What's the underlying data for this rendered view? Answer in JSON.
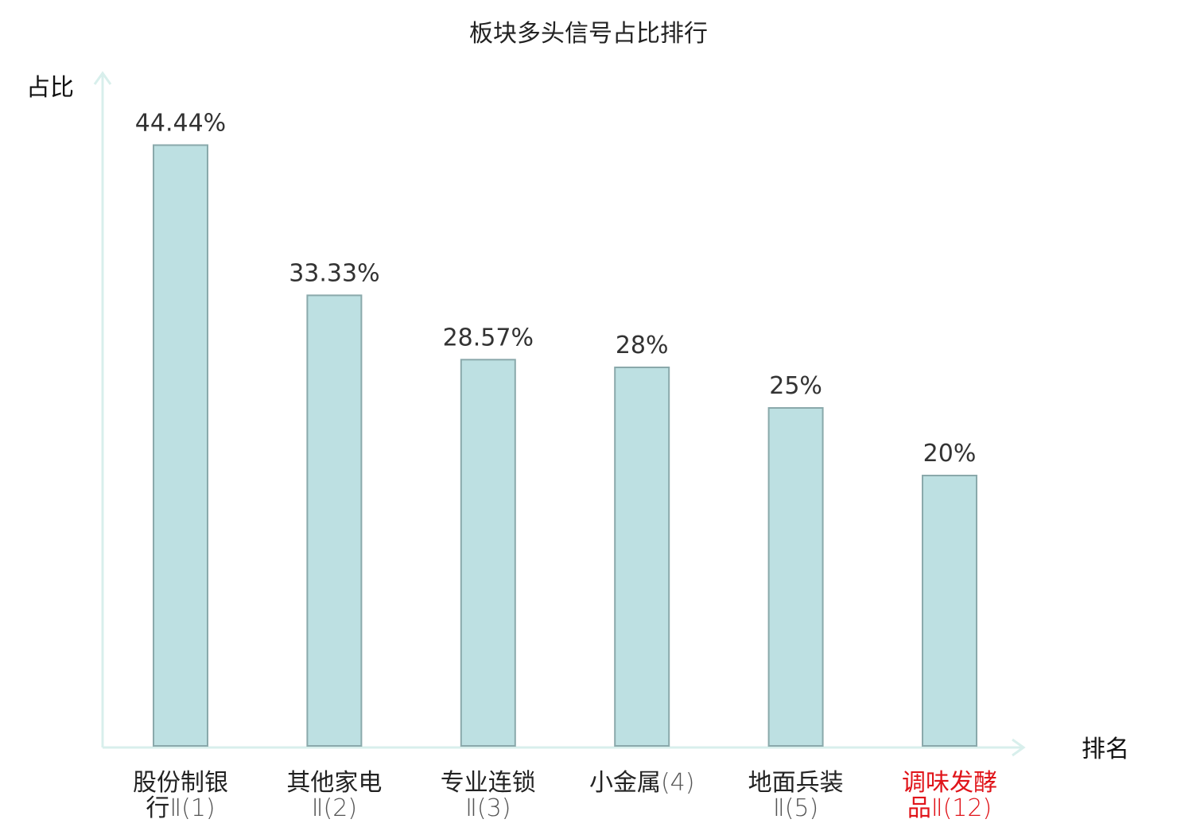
{
  "chart_data": {
    "type": "bar",
    "title": "板块多头信号占比排行",
    "xlabel": "排名",
    "ylabel": "占比",
    "ylim": [
      0,
      50
    ],
    "grid": false,
    "categories": [
      {
        "line1": "股份制银",
        "line2_prefix": "行",
        "line2_suffix": "Ⅱ(1)",
        "highlight": false
      },
      {
        "line1": "其他家电",
        "line2_prefix": "",
        "line2_suffix": "Ⅱ(2)",
        "highlight": false
      },
      {
        "line1": "专业连锁",
        "line2_prefix": "",
        "line2_suffix": "Ⅱ(3)",
        "highlight": false
      },
      {
        "line1": "小金属",
        "line1_suffix": "(4)",
        "line2_prefix": "",
        "line2_suffix": "",
        "highlight": false
      },
      {
        "line1": "地面兵装",
        "line2_prefix": "",
        "line2_suffix": "Ⅱ(5)",
        "highlight": false
      },
      {
        "line1": "调味发酵",
        "line2_prefix": "品",
        "line2_suffix": "Ⅱ(12)",
        "highlight": true
      }
    ],
    "values": [
      44.44,
      33.33,
      28.57,
      28,
      25,
      20
    ],
    "value_labels": [
      "44.44%",
      "33.33%",
      "28.57%",
      "28%",
      "25%",
      "20%"
    ]
  },
  "colors": {
    "bar_fill": "#bde0e2",
    "bar_stroke": "#8aa9ab",
    "axis": "#d8efec",
    "label_normal": "#222222",
    "label_number": "#555555",
    "label_highlight": "#e0141a"
  }
}
